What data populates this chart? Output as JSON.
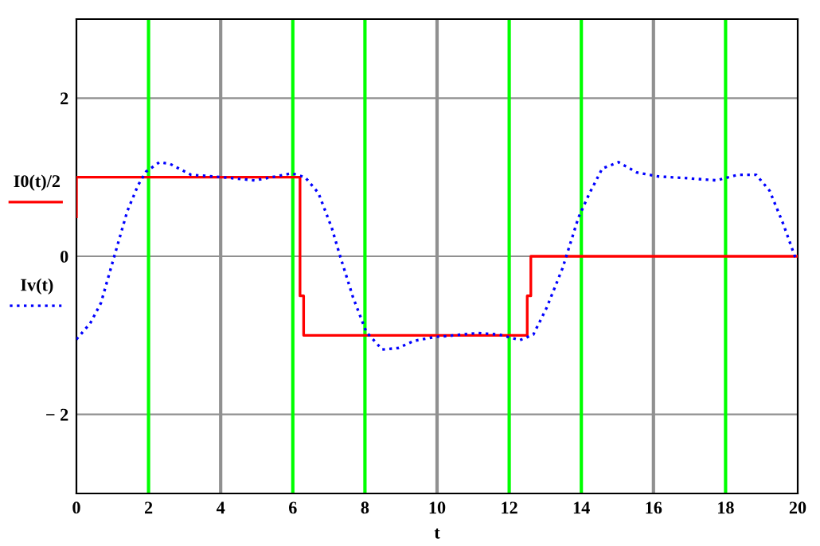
{
  "chart_data": {
    "type": "line",
    "xlabel": "t",
    "xlim": [
      0,
      20
    ],
    "xticks": [
      0,
      2,
      4,
      6,
      8,
      10,
      12,
      14,
      16,
      18,
      20
    ],
    "ylim": [
      -3,
      3
    ],
    "yticks": [
      {
        "value": -2,
        "label": "− 2"
      },
      0,
      2
    ],
    "grid": "y",
    "legend": "left",
    "ref_lines": [
      {
        "axis": "x",
        "value": 2,
        "color": "#00ff00"
      },
      {
        "axis": "x",
        "value": 4,
        "color": "#909090"
      },
      {
        "axis": "x",
        "value": 6,
        "color": "#00ff00"
      },
      {
        "axis": "x",
        "value": 8,
        "color": "#00ff00"
      },
      {
        "axis": "x",
        "value": 10,
        "color": "#909090"
      },
      {
        "axis": "x",
        "value": 12,
        "color": "#00ff00"
      },
      {
        "axis": "x",
        "value": 14,
        "color": "#00ff00"
      },
      {
        "axis": "x",
        "value": 16,
        "color": "#909090"
      },
      {
        "axis": "x",
        "value": 18,
        "color": "#00ff00"
      }
    ],
    "series": [
      {
        "name": "I0(t)/2",
        "color": "#ff0000",
        "line_style": "solid",
        "x": [
          0,
          0,
          6.2,
          6.2,
          6.3,
          6.3,
          12.5,
          12.5,
          12.6,
          12.6,
          20
        ],
        "values": [
          0.5,
          1,
          1,
          -0.5,
          -0.5,
          -1,
          -1,
          -0.5,
          -0.5,
          0,
          0
        ]
      },
      {
        "name": "Iv(t)",
        "color": "#0000ff",
        "line_style": "dotted",
        "x": [
          0,
          0.38,
          0.68,
          1.05,
          1.41,
          1.71,
          1.93,
          2.3,
          2.59,
          3.18,
          4.06,
          4.94,
          5.53,
          5.97,
          6.34,
          6.71,
          7.08,
          7.3,
          7.67,
          8.04,
          8.48,
          8.92,
          9.36,
          9.95,
          10.24,
          11.13,
          11.71,
          12.3,
          12.67,
          13.04,
          13.48,
          13.92,
          14.22,
          14.58,
          15.03,
          15.54,
          16.13,
          16.86,
          17.75,
          18.33,
          18.85,
          19.22,
          19.59,
          19.96
        ],
        "values": [
          -1.05,
          -0.85,
          -0.59,
          0,
          0.57,
          0.9,
          1.07,
          1.19,
          1.17,
          1.03,
          1.0,
          0.96,
          1.01,
          1.05,
          1.0,
          0.8,
          0.36,
          0.02,
          -0.52,
          -0.96,
          -1.18,
          -1.16,
          -1.07,
          -1.02,
          -1.01,
          -0.97,
          -0.99,
          -1.06,
          -0.99,
          -0.65,
          -0.15,
          0.49,
          0.79,
          1.11,
          1.19,
          1.06,
          1.01,
          0.99,
          0.96,
          1.03,
          1.03,
          0.83,
          0.42,
          -0.05
        ]
      }
    ]
  }
}
